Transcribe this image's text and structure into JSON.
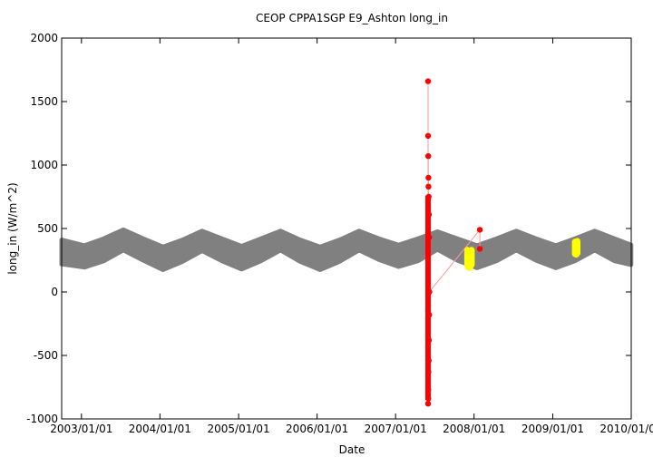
{
  "chart_data": {
    "type": "scatter",
    "title": "CEOP CPPA1SGP E9_Ashton  long_in",
    "xlabel": "Date",
    "ylabel": "long_in (W/m^2)",
    "xlim": [
      "2002-10-01",
      "2010-01-01"
    ],
    "ylim": [
      -1000,
      2000
    ],
    "x_ticks": [
      "2003/01/01",
      "2004/01/01",
      "2005/01/01",
      "2006/01/01",
      "2007/01/01",
      "2008/01/01",
      "2009/01/01",
      "2010/01/01"
    ],
    "y_ticks": [
      -1000,
      -500,
      0,
      500,
      1000,
      1500,
      2000
    ],
    "grid": false,
    "series": [
      {
        "color": "#808080",
        "style": "dense seasonal band",
        "x": [
          "2002-10-01",
          "2003-01-15",
          "2003-04-15",
          "2003-07-15",
          "2003-10-15",
          "2004-01-15",
          "2004-04-15",
          "2004-07-15",
          "2004-10-15",
          "2005-01-15",
          "2005-04-15",
          "2005-07-15",
          "2005-10-15",
          "2006-01-15",
          "2006-04-15",
          "2006-07-15",
          "2006-10-15",
          "2007-01-15",
          "2007-04-15",
          "2007-07-15",
          "2007-10-15",
          "2008-01-15",
          "2008-04-15",
          "2008-07-15",
          "2008-10-15",
          "2009-01-15",
          "2009-04-15",
          "2009-07-15",
          "2009-10-15",
          "2009-12-31"
        ],
        "y_low": [
          220,
          195,
          245,
          330,
          250,
          175,
          240,
          325,
          245,
          180,
          245,
          330,
          240,
          175,
          240,
          330,
          255,
          200,
          245,
          335,
          250,
          190,
          245,
          330,
          250,
          190,
          245,
          330,
          245,
          215
        ],
        "y_high": [
          410,
          365,
          420,
          490,
          420,
          355,
          410,
          480,
          420,
          360,
          420,
          480,
          410,
          355,
          410,
          480,
          420,
          370,
          420,
          475,
          420,
          365,
          420,
          480,
          420,
          365,
          420,
          480,
          420,
          370
        ]
      },
      {
        "color": "#ff0000",
        "style": "points connected by light red line",
        "x": [
          "2007-06-01",
          "2007-06-01",
          "2007-06-01",
          "2007-06-02",
          "2007-06-02",
          "2007-06-02",
          "2007-06-03",
          "2007-06-03",
          "2007-06-03",
          "2007-06-04",
          "2007-06-04",
          "2007-06-05",
          "2007-06-05",
          "2007-06-06",
          "2007-06-06",
          "2007-06-07",
          "2008-01-28",
          "2008-01-28"
        ],
        "y": [
          1660,
          -880,
          1230,
          -840,
          1070,
          -770,
          900,
          -630,
          830,
          -540,
          750,
          -380,
          610,
          -180,
          430,
          0,
          490,
          340
        ]
      },
      {
        "color": "#ffff00",
        "style": "dense point cluster",
        "x": [
          "2007-12-01",
          "2007-12-05",
          "2007-12-10",
          "2007-12-15",
          "2007-12-20",
          "2009-04-15",
          "2009-04-20",
          "2009-04-25"
        ],
        "y_low": [
          210,
          195,
          190,
          200,
          215,
          300,
          295,
          305
        ],
        "y_high": [
          330,
          320,
          310,
          320,
          330,
          395,
          390,
          400
        ]
      }
    ]
  }
}
